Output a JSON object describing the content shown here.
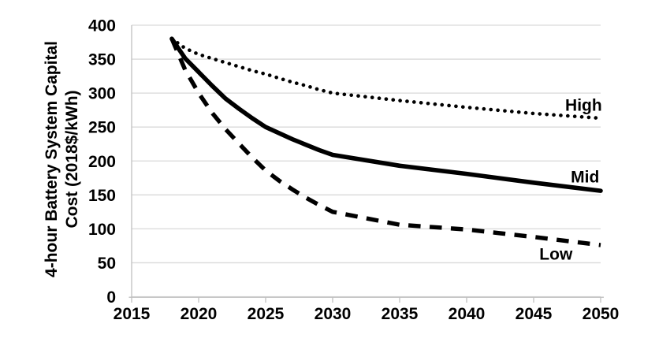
{
  "chart_data": {
    "type": "line",
    "title": "",
    "xlabel": "",
    "ylabel": "4-hour Battery System Capital Cost (2018$/kWh)",
    "ylabel_lines": [
      "4-hour Battery System Capital",
      "Cost (2018$/kWh)"
    ],
    "xlim": [
      2015,
      2050
    ],
    "ylim": [
      0,
      400
    ],
    "xticks": [
      2015,
      2020,
      2025,
      2030,
      2035,
      2040,
      2045,
      2050
    ],
    "yticks": [
      0,
      50,
      100,
      150,
      200,
      250,
      300,
      350,
      400
    ],
    "grid": {
      "horizontal": true,
      "vertical": false
    },
    "legend_position": "inline-annotations",
    "colors": {
      "series": "#000000",
      "gridline": "#d9d9d9",
      "axis": "#bfbfbf",
      "text": "#000000",
      "background": "#ffffff"
    },
    "x": [
      2018,
      2019,
      2020,
      2021,
      2022,
      2023,
      2024,
      2025,
      2026,
      2027,
      2028,
      2029,
      2030,
      2035,
      2040,
      2045,
      2050
    ],
    "series": [
      {
        "name": "High",
        "style": "dotted",
        "values": [
          380,
          366,
          357,
          351,
          345,
          339,
          333,
          328,
          322,
          316,
          311,
          305,
          300,
          289,
          279,
          270,
          263
        ]
      },
      {
        "name": "Mid",
        "style": "solid",
        "values": [
          380,
          351,
          331,
          311,
          292,
          277,
          263,
          250,
          241,
          232,
          224,
          216,
          209,
          193,
          181,
          168,
          156
        ]
      },
      {
        "name": "Low",
        "style": "dashed",
        "values": [
          380,
          334,
          300,
          271,
          247,
          226,
          205,
          186,
          171,
          158,
          146,
          135,
          125,
          106,
          99,
          88,
          76
        ]
      }
    ],
    "annotations": [
      {
        "text": "High",
        "year": 2050.1,
        "value": 274,
        "anchor": "end"
      },
      {
        "text": "Mid",
        "year": 2049.9,
        "value": 168.5,
        "anchor": "end"
      },
      {
        "text": "Low",
        "year": 2047.9,
        "value": 54.5,
        "anchor": "end"
      }
    ]
  }
}
